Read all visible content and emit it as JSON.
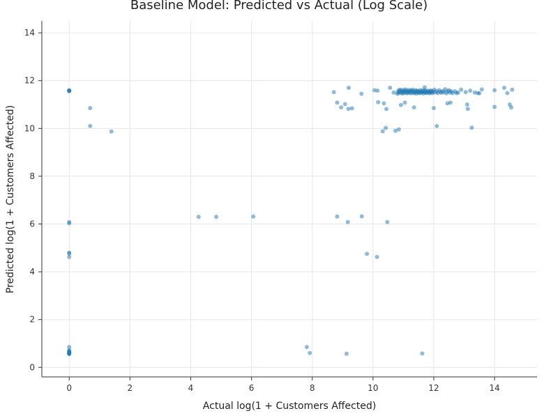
{
  "chart_data": {
    "type": "scatter",
    "title": "Baseline Model: Predicted vs Actual (Log Scale)",
    "xlabel": "Actual log(1 + Customers Affected)",
    "ylabel": "Predicted log(1 + Customers Affected)",
    "xlim": [
      -0.9,
      15.4
    ],
    "ylim": [
      -0.4,
      14.5
    ],
    "xticks": [
      0,
      2,
      4,
      6,
      8,
      10,
      12,
      14
    ],
    "yticks": [
      0,
      2,
      4,
      6,
      8,
      10,
      12,
      14
    ],
    "grid": true,
    "point_color": "#1f77b4",
    "point_opacity": 0.5,
    "points": [
      [
        0,
        11.57
      ],
      [
        0,
        11.6
      ],
      [
        0,
        11.58
      ],
      [
        0,
        11.56
      ],
      [
        0.69,
        10.85
      ],
      [
        0.69,
        10.1
      ],
      [
        1.39,
        9.87
      ],
      [
        0,
        6.08
      ],
      [
        0,
        6.03
      ],
      [
        0,
        4.8
      ],
      [
        0,
        4.76
      ],
      [
        0,
        4.62
      ],
      [
        0,
        0.85
      ],
      [
        0,
        0.72
      ],
      [
        0,
        0.65
      ],
      [
        0,
        0.62
      ],
      [
        0,
        0.6
      ],
      [
        0,
        0.58
      ],
      [
        0,
        0.57
      ],
      [
        0,
        0.55
      ],
      [
        0,
        0.63
      ],
      [
        0,
        0.68
      ],
      [
        4.26,
        6.3
      ],
      [
        4.84,
        6.3
      ],
      [
        6.06,
        6.31
      ],
      [
        8.82,
        6.31
      ],
      [
        9.17,
        6.08
      ],
      [
        9.63,
        6.32
      ],
      [
        10.47,
        6.08
      ],
      [
        9.8,
        4.75
      ],
      [
        10.13,
        4.62
      ],
      [
        7.82,
        0.85
      ],
      [
        7.92,
        0.6
      ],
      [
        9.13,
        0.57
      ],
      [
        11.62,
        0.58
      ],
      [
        8.71,
        11.52
      ],
      [
        9.2,
        11.7
      ],
      [
        9.62,
        11.45
      ],
      [
        8.82,
        11.08
      ],
      [
        8.95,
        10.88
      ],
      [
        9.08,
        11.02
      ],
      [
        9.19,
        10.82
      ],
      [
        9.31,
        10.84
      ],
      [
        10.05,
        11.6
      ],
      [
        10.15,
        11.58
      ],
      [
        10.17,
        11.1
      ],
      [
        10.36,
        11.05
      ],
      [
        10.44,
        10.81
      ],
      [
        10.56,
        11.7
      ],
      [
        10.32,
        9.88
      ],
      [
        10.42,
        10.02
      ],
      [
        10.74,
        9.9
      ],
      [
        10.85,
        9.96
      ],
      [
        10.68,
        11.5
      ],
      [
        10.8,
        11.45
      ],
      [
        10.82,
        11.52
      ],
      [
        10.84,
        11.6
      ],
      [
        10.86,
        11.48
      ],
      [
        10.88,
        11.55
      ],
      [
        10.9,
        11.62
      ],
      [
        10.92,
        11.5
      ],
      [
        10.94,
        11.58
      ],
      [
        10.96,
        11.46
      ],
      [
        10.98,
        11.53
      ],
      [
        11.0,
        11.6
      ],
      [
        11.02,
        11.48
      ],
      [
        11.04,
        11.55
      ],
      [
        11.06,
        11.63
      ],
      [
        11.08,
        11.5
      ],
      [
        11.1,
        11.57
      ],
      [
        11.12,
        11.47
      ],
      [
        11.14,
        11.54
      ],
      [
        11.16,
        11.61
      ],
      [
        11.18,
        11.49
      ],
      [
        11.2,
        11.56
      ],
      [
        11.22,
        11.52
      ],
      [
        11.24,
        11.6
      ],
      [
        11.26,
        11.47
      ],
      [
        11.28,
        11.55
      ],
      [
        11.3,
        11.62
      ],
      [
        11.32,
        11.5
      ],
      [
        11.34,
        11.57
      ],
      [
        11.36,
        11.48
      ],
      [
        11.38,
        11.53
      ],
      [
        11.4,
        11.6
      ],
      [
        11.42,
        11.46
      ],
      [
        11.44,
        11.54
      ],
      [
        11.46,
        11.58
      ],
      [
        11.48,
        11.5
      ],
      [
        11.5,
        11.56
      ],
      [
        11.52,
        11.47
      ],
      [
        11.54,
        11.53
      ],
      [
        11.56,
        11.61
      ],
      [
        11.58,
        11.49
      ],
      [
        11.6,
        11.55
      ],
      [
        11.62,
        11.52
      ],
      [
        11.64,
        11.58
      ],
      [
        11.66,
        11.46
      ],
      [
        11.68,
        11.54
      ],
      [
        11.7,
        11.6
      ],
      [
        11.72,
        11.5
      ],
      [
        11.74,
        11.56
      ],
      [
        11.76,
        11.48
      ],
      [
        11.78,
        11.52
      ],
      [
        11.8,
        11.58
      ],
      [
        11.82,
        11.5
      ],
      [
        11.84,
        11.55
      ],
      [
        11.86,
        11.47
      ],
      [
        11.88,
        11.53
      ],
      [
        11.9,
        11.59
      ],
      [
        11.92,
        11.5
      ],
      [
        11.94,
        11.56
      ],
      [
        11.96,
        11.48
      ],
      [
        11.98,
        11.54
      ],
      [
        10.92,
        10.98
      ],
      [
        11.05,
        11.08
      ],
      [
        11.35,
        10.88
      ],
      [
        11.7,
        11.72
      ],
      [
        12.0,
        10.85
      ],
      [
        12.1,
        10.1
      ],
      [
        12.02,
        11.62
      ],
      [
        12.06,
        11.5
      ],
      [
        12.1,
        11.56
      ],
      [
        12.14,
        11.48
      ],
      [
        12.18,
        11.6
      ],
      [
        12.22,
        11.53
      ],
      [
        12.26,
        11.49
      ],
      [
        12.3,
        11.57
      ],
      [
        12.34,
        11.51
      ],
      [
        12.38,
        11.64
      ],
      [
        12.42,
        11.47
      ],
      [
        12.46,
        11.55
      ],
      [
        12.5,
        11.6
      ],
      [
        12.54,
        11.5
      ],
      [
        12.58,
        11.56
      ],
      [
        12.62,
        11.48
      ],
      [
        12.45,
        11.05
      ],
      [
        12.55,
        11.08
      ],
      [
        12.8,
        11.5
      ],
      [
        12.9,
        11.62
      ],
      [
        13.05,
        11.52
      ],
      [
        13.1,
        11.0
      ],
      [
        13.12,
        10.82
      ],
      [
        13.2,
        11.58
      ],
      [
        12.7,
        11.55
      ],
      [
        12.75,
        11.48
      ],
      [
        13.25,
        10.03
      ],
      [
        13.35,
        11.5
      ],
      [
        13.45,
        11.48
      ],
      [
        13.5,
        11.47
      ],
      [
        13.58,
        11.63
      ],
      [
        14.0,
        11.6
      ],
      [
        14.0,
        10.9
      ],
      [
        14.32,
        11.7
      ],
      [
        14.42,
        11.48
      ],
      [
        14.5,
        11.0
      ],
      [
        14.55,
        10.88
      ],
      [
        14.58,
        11.62
      ]
    ]
  }
}
